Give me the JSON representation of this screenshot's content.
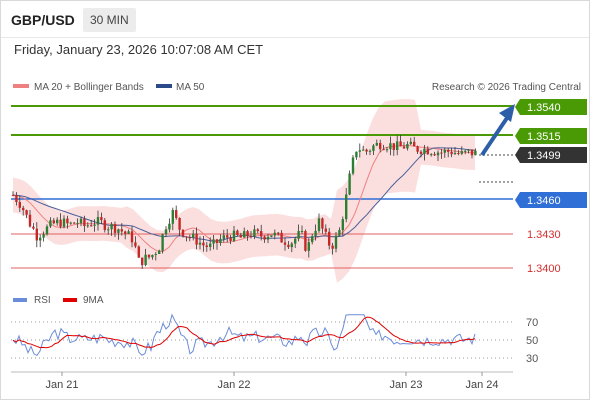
{
  "header": {
    "pair": "GBP/USD",
    "timeframe": "30 MIN",
    "timestamp": "Friday, January 23, 2026 10:07:08 AM CET"
  },
  "legend": {
    "ma20": "MA 20 + Bollinger Bands",
    "ma50": "MA 50",
    "credit": "Research © 2026 Trading Central"
  },
  "levels": {
    "r2": "1.3540",
    "r1": "1.3515",
    "last": "1.3499",
    "pivot": "1.3460",
    "s1": "1.3430",
    "s2": "1.3400"
  },
  "rsi_legend": {
    "rsi": "RSI",
    "ma": "9MA"
  },
  "rsi_ticks": [
    "70",
    "50",
    "30"
  ],
  "x_ticks": [
    "Jan 21",
    "Jan 22",
    "Jan 23",
    "Jan 24"
  ],
  "colors": {
    "resistance": "#4a9a06",
    "pivot": "#2f6fd6",
    "support": "#d32f2f",
    "last": "#333333",
    "bollinger": "#fad9d9",
    "ma50": "#4a5f9a",
    "ma20": "#f08080",
    "rsi": "#6b8cd8",
    "rsi_ma": "#e00000"
  },
  "chart_data": {
    "type": "candlestick",
    "y_range": [
      1.3395,
      1.3545
    ],
    "x_range_sessions": [
      "Jan 21",
      "Jan 24"
    ],
    "levels": [
      {
        "value": 1.354,
        "role": "resistance"
      },
      {
        "value": 1.3515,
        "role": "resistance"
      },
      {
        "value": 1.3499,
        "role": "last price"
      },
      {
        "value": 1.346,
        "role": "pivot"
      },
      {
        "value": 1.343,
        "role": "support"
      },
      {
        "value": 1.34,
        "role": "support"
      }
    ],
    "rsi_range": [
      20,
      80
    ],
    "rsi_gridlines": [
      70,
      50,
      30
    ]
  }
}
